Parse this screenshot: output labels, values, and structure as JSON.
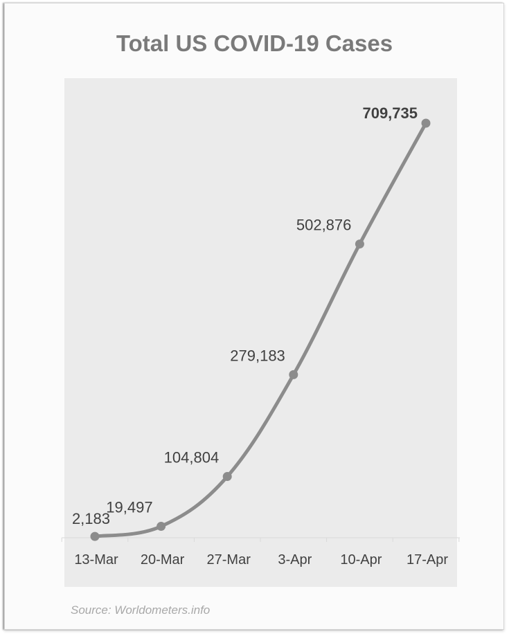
{
  "chart_data": {
    "type": "line",
    "title": "Total US COVID-19 Cases",
    "categories": [
      "13-Mar",
      "20-Mar",
      "27-Mar",
      "3-Apr",
      "10-Apr",
      "17-Apr"
    ],
    "series": [
      {
        "values": [
          2183,
          19497,
          104804,
          279183,
          502876,
          709735
        ],
        "labels": [
          "2,183",
          "19,497",
          "104,804",
          "279,183",
          "502,876",
          "709,735"
        ]
      }
    ],
    "xlabel": "",
    "ylabel": "",
    "ylim": [
      0,
      709735
    ],
    "grid": false,
    "legend": "none",
    "highlight_last_label_bold": true,
    "colors": {
      "line": "#8c8c8c",
      "marker": "#8c8c8c",
      "plot_background": "#ebebeb",
      "title": "#7a7a7a",
      "label": "#404040",
      "source": "#a8a8a8"
    }
  },
  "source": "Source: Worldometers.info"
}
